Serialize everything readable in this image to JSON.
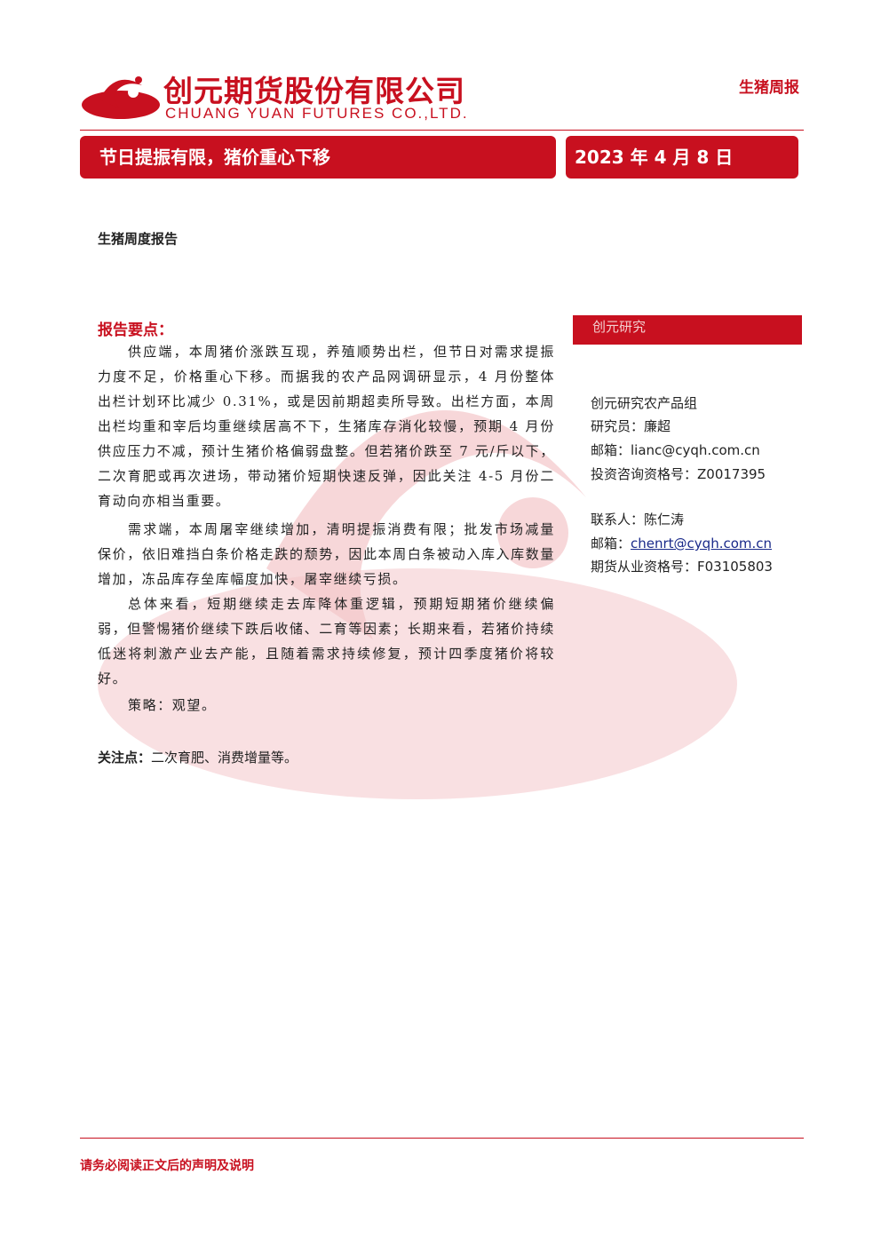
{
  "header": {
    "company_cn": "创元期货股份有限公司",
    "company_en": "CHUANG YUAN FUTURES CO.,LTD.",
    "report_tag": "生猪周报"
  },
  "banner": {
    "title": "节日提振有限，猪价重心下移",
    "date": "2023 年 4 月 8 日"
  },
  "report_type": "生猪周度报告",
  "key_points": {
    "heading": "报告要点：",
    "paragraphs": [
      "供应端，本周猪价涨跌互现，养殖顺势出栏，但节日对需求提振力度不足，价格重心下移。而据我的农产品网调研显示，4 月份整体出栏计划环比减少 0.31%，或是因前期超卖所导致。出栏方面，本周出栏均重和宰后均重继续居高不下，生猪库存消化较慢，预期 4 月份供应压力不减，预计生猪价格偏弱盘整。但若猪价跌至 7 元/斤以下，二次育肥或再次进场，带动猪价短期快速反弹，因此关注 4-5 月份二育动向亦相当重要。",
      "需求端，本周屠宰继续增加，清明提振消费有限；批发市场减量保价，依旧难挡白条价格走跌的颓势，因此本周白条被动入库入库数量增加，冻品库存垒库幅度加快，屠宰继续亏损。",
      "总体来看，短期继续走去库降体重逻辑，预期短期猪价继续偏弱，但警惕猪价继续下跌后收储、二育等因素；长期来看，若猪价持续低迷将刺激产业去产能，且随着需求持续修复，预计四季度猪价将较好。",
      "策略：观望。"
    ]
  },
  "focus": {
    "label": "关注点：",
    "text": "二次育肥、消费增量等。"
  },
  "sidebar": {
    "heading": "创元研究",
    "group": "创元研究农产品组",
    "researcher": "研究员：廉超",
    "email1": "邮箱：lianc@cyqh.com.cn",
    "license1": "投资咨询资格号：Z0017395",
    "contact": "联系人：陈仁涛",
    "email2_label": "邮箱：",
    "email2": "chenrt@cyqh.com.cn",
    "license2": "期货从业资格号：F03105803"
  },
  "footer": "请务必阅读正文后的声明及说明"
}
